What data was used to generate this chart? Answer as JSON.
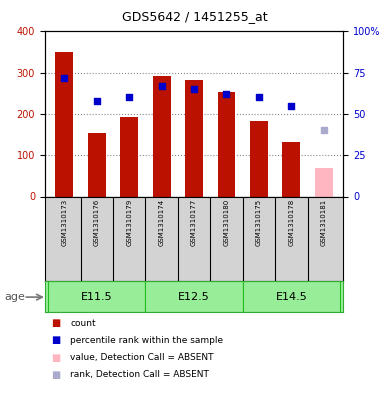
{
  "title": "GDS5642 / 1451255_at",
  "samples": [
    "GSM1310173",
    "GSM1310176",
    "GSM1310179",
    "GSM1310174",
    "GSM1310177",
    "GSM1310180",
    "GSM1310175",
    "GSM1310178",
    "GSM1310181"
  ],
  "counts": [
    350,
    153,
    193,
    291,
    282,
    253,
    182,
    131,
    70
  ],
  "ranks": [
    72,
    58,
    60,
    67,
    65,
    62,
    60,
    55,
    null
  ],
  "absent_count": [
    null,
    null,
    null,
    null,
    null,
    null,
    null,
    null,
    70
  ],
  "absent_rank": [
    null,
    null,
    null,
    null,
    null,
    null,
    null,
    null,
    40
  ],
  "age_groups": [
    {
      "label": "E11.5",
      "start": 0,
      "end": 3
    },
    {
      "label": "E12.5",
      "start": 3,
      "end": 6
    },
    {
      "label": "E14.5",
      "start": 6,
      "end": 9
    }
  ],
  "ylim_left": [
    0,
    400
  ],
  "ylim_right": [
    0,
    100
  ],
  "yticks_left": [
    0,
    100,
    200,
    300,
    400
  ],
  "yticks_right": [
    0,
    25,
    50,
    75,
    100
  ],
  "bar_color": "#BB1100",
  "bar_absent_color": "#FFB6C1",
  "rank_color": "#0000CC",
  "rank_absent_color": "#AAAACC",
  "bar_width": 0.55,
  "age_bg_color": "#98EE98",
  "age_border_color": "#33AA33",
  "age_dark_color": "#22BB22",
  "sample_bg_color": "#D3D3D3",
  "dotted_line_color": "#888888",
  "grid_lines": [
    100,
    200,
    300
  ]
}
